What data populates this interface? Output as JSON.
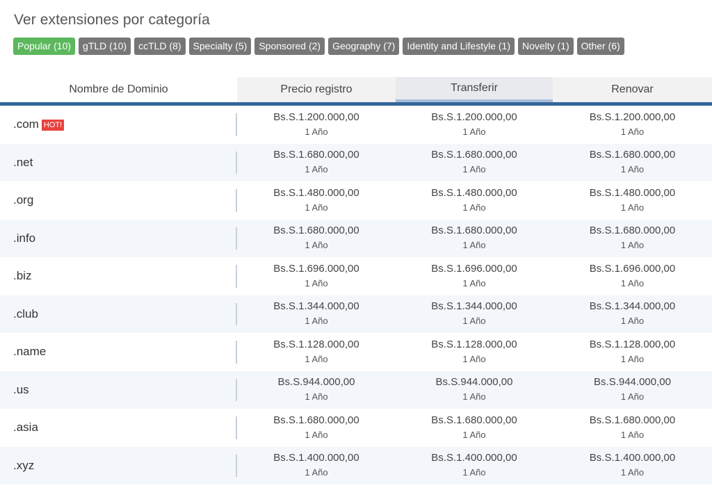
{
  "heading": "Ver extensiones por categoría",
  "filters": [
    {
      "label": "Popular (10)",
      "active": true
    },
    {
      "label": "gTLD (10)",
      "active": false
    },
    {
      "label": "ccTLD (8)",
      "active": false
    },
    {
      "label": "Specialty (5)",
      "active": false
    },
    {
      "label": "Sponsored (2)",
      "active": false
    },
    {
      "label": "Geography (7)",
      "active": false
    },
    {
      "label": "Identity and Lifestyle (1)",
      "active": false
    },
    {
      "label": "Novelty (1)",
      "active": false
    },
    {
      "label": "Other (6)",
      "active": false
    }
  ],
  "table": {
    "headers": [
      "Nombre de Dominio",
      "Precio registro",
      "Transferir",
      "Renovar"
    ],
    "hot_label": "HOT!",
    "rows": [
      {
        "tld": ".com",
        "hot": true,
        "register": {
          "price": "Bs.S.1.200.000,00",
          "period": "1 Año"
        },
        "transfer": {
          "price": "Bs.S.1.200.000,00",
          "period": "1 Año"
        },
        "renew": {
          "price": "Bs.S.1.200.000,00",
          "period": "1 Año"
        }
      },
      {
        "tld": ".net",
        "hot": false,
        "register": {
          "price": "Bs.S.1.680.000,00",
          "period": "1 Año"
        },
        "transfer": {
          "price": "Bs.S.1.680.000,00",
          "period": "1 Año"
        },
        "renew": {
          "price": "Bs.S.1.680.000,00",
          "period": "1 Año"
        }
      },
      {
        "tld": ".org",
        "hot": false,
        "register": {
          "price": "Bs.S.1.480.000,00",
          "period": "1 Año"
        },
        "transfer": {
          "price": "Bs.S.1.480.000,00",
          "period": "1 Año"
        },
        "renew": {
          "price": "Bs.S.1.480.000,00",
          "period": "1 Año"
        }
      },
      {
        "tld": ".info",
        "hot": false,
        "register": {
          "price": "Bs.S.1.680.000,00",
          "period": "1 Año"
        },
        "transfer": {
          "price": "Bs.S.1.680.000,00",
          "period": "1 Año"
        },
        "renew": {
          "price": "Bs.S.1.680.000,00",
          "period": "1 Año"
        }
      },
      {
        "tld": ".biz",
        "hot": false,
        "register": {
          "price": "Bs.S.1.696.000,00",
          "period": "1 Año"
        },
        "transfer": {
          "price": "Bs.S.1.696.000,00",
          "period": "1 Año"
        },
        "renew": {
          "price": "Bs.S.1.696.000,00",
          "period": "1 Año"
        }
      },
      {
        "tld": ".club",
        "hot": false,
        "register": {
          "price": "Bs.S.1.344.000,00",
          "period": "1 Año"
        },
        "transfer": {
          "price": "Bs.S.1.344.000,00",
          "period": "1 Año"
        },
        "renew": {
          "price": "Bs.S.1.344.000,00",
          "period": "1 Año"
        }
      },
      {
        "tld": ".name",
        "hot": false,
        "register": {
          "price": "Bs.S.1.128.000,00",
          "period": "1 Año"
        },
        "transfer": {
          "price": "Bs.S.1.128.000,00",
          "period": "1 Año"
        },
        "renew": {
          "price": "Bs.S.1.128.000,00",
          "period": "1 Año"
        }
      },
      {
        "tld": ".us",
        "hot": false,
        "register": {
          "price": "Bs.S.944.000,00",
          "period": "1 Año"
        },
        "transfer": {
          "price": "Bs.S.944.000,00",
          "period": "1 Año"
        },
        "renew": {
          "price": "Bs.S.944.000,00",
          "period": "1 Año"
        }
      },
      {
        "tld": ".asia",
        "hot": false,
        "register": {
          "price": "Bs.S.1.680.000,00",
          "period": "1 Año"
        },
        "transfer": {
          "price": "Bs.S.1.680.000,00",
          "period": "1 Año"
        },
        "renew": {
          "price": "Bs.S.1.680.000,00",
          "period": "1 Año"
        }
      },
      {
        "tld": ".xyz",
        "hot": false,
        "register": {
          "price": "Bs.S.1.400.000,00",
          "period": "1 Año"
        },
        "transfer": {
          "price": "Bs.S.1.400.000,00",
          "period": "1 Año"
        },
        "renew": {
          "price": "Bs.S.1.400.000,00",
          "period": "1 Año"
        }
      }
    ]
  },
  "colors": {
    "active_filter": "#5cb85c",
    "filter": "#777777",
    "header_rule": "#336699",
    "hot_badge": "#e9423f"
  }
}
